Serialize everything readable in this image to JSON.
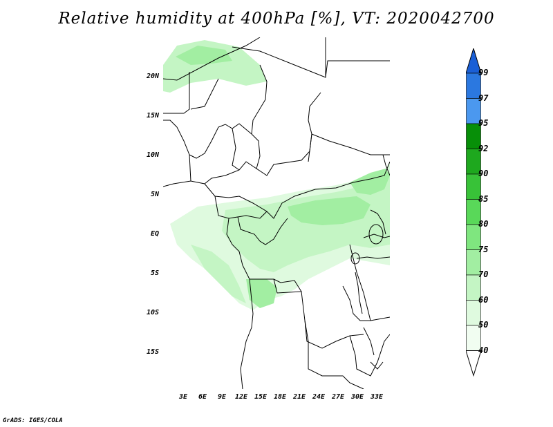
{
  "title": "Relative humidity at 400hPa [%], VT: 2020042700",
  "credit": "GrADS: IGES/COLA",
  "map": {
    "lat_labels": [
      "20N",
      "15N",
      "10N",
      "5N",
      "EQ",
      "5S",
      "10S",
      "15S"
    ],
    "lon_labels": [
      "3E",
      "6E",
      "9E",
      "12E",
      "15E",
      "18E",
      "21E",
      "24E",
      "27E",
      "30E",
      "33E"
    ]
  },
  "colorbar": {
    "levels": [
      "99",
      "97",
      "95",
      "92",
      "90",
      "85",
      "80",
      "75",
      "70",
      "60",
      "50",
      "40"
    ],
    "colors": [
      "#1a5fd6",
      "#2b78e0",
      "#4b98ef",
      "#078f08",
      "#1ea81e",
      "#38c238",
      "#59d859",
      "#7fe67f",
      "#a2eea2",
      "#c4f5c4",
      "#dffadf",
      "#f1fdf1",
      "#ffffff"
    ]
  }
}
